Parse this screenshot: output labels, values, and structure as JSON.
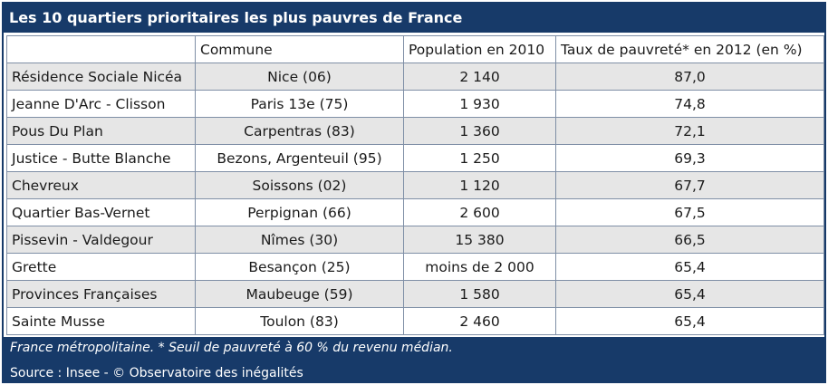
{
  "title": "Les 10 quartiers prioritaires les plus pauvres de France",
  "headers": [
    "",
    "Commune",
    "Population en 2010",
    "Taux de pauvreté* en 2012 (en %)"
  ],
  "rows": [
    {
      "quartier": "Résidence Sociale Nicéa",
      "commune": "Nice (06)",
      "population": "2 140",
      "taux": "87,0"
    },
    {
      "quartier": "Jeanne D'Arc - Clisson",
      "commune": "Paris 13e (75)",
      "population": "1 930",
      "taux": "74,8"
    },
    {
      "quartier": "Pous Du Plan",
      "commune": "Carpentras (83)",
      "population": "1 360",
      "taux": "72,1"
    },
    {
      "quartier": "Justice - Butte Blanche",
      "commune": "Bezons, Argenteuil (95)",
      "population": "1 250",
      "taux": "69,3"
    },
    {
      "quartier": "Chevreux",
      "commune": "Soissons (02)",
      "population": "1 120",
      "taux": "67,7"
    },
    {
      "quartier": "Quartier Bas-Vernet",
      "commune": "Perpignan (66)",
      "population": "2 600",
      "taux": "67,5"
    },
    {
      "quartier": "Pissevin - Valdegour",
      "commune": "Nîmes (30)",
      "population": "15 380",
      "taux": "66,5"
    },
    {
      "quartier": "Grette",
      "commune": "Besançon (25)",
      "population": "moins de 2 000",
      "taux": "65,4"
    },
    {
      "quartier": "Provinces Françaises",
      "commune": "Maubeuge (59)",
      "population": "1 580",
      "taux": "65,4"
    },
    {
      "quartier": "Sainte Musse",
      "commune": "Toulon (83)",
      "population": "2 460",
      "taux": "65,4"
    }
  ],
  "footnote": "France métropolitaine. * Seuil de pauvreté à 60 % du revenu médian.",
  "source": "Source : Insee - © Observatoire des inégalités",
  "colors": {
    "header_bg": "#173a69",
    "row_alt_bg": "#e6e6e6",
    "border": "#7f8fa6"
  }
}
